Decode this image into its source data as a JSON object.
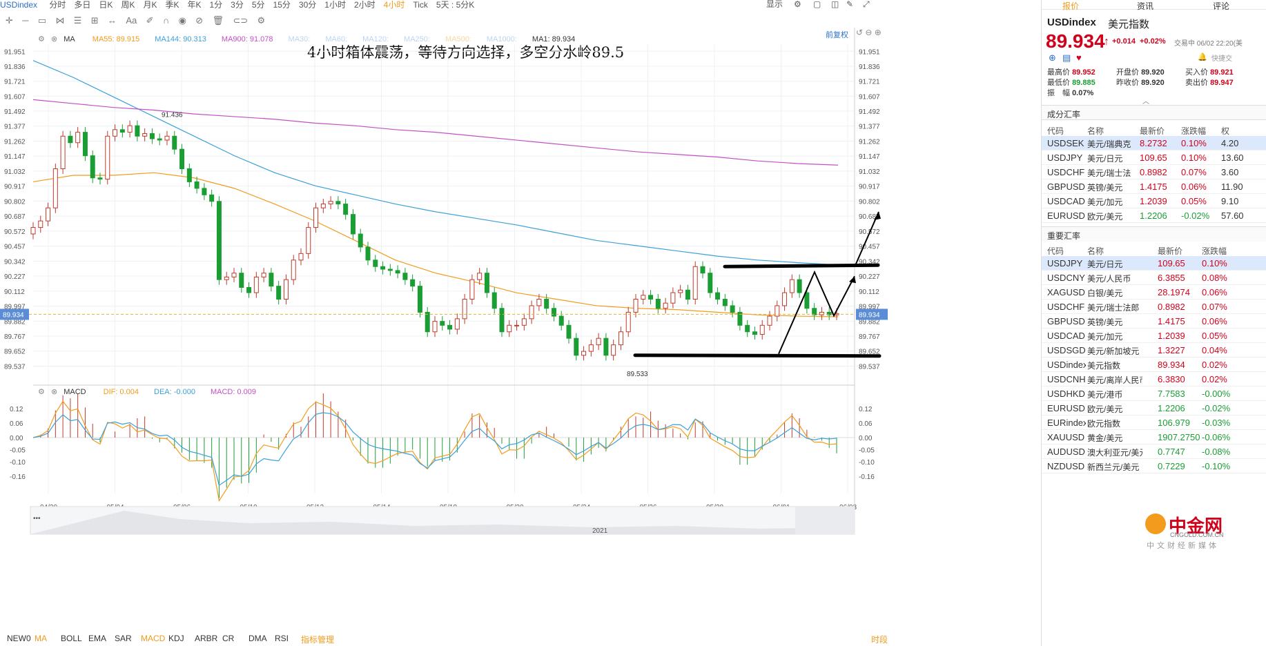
{
  "topbar": {
    "symbol": "USDindex",
    "periods": [
      "分时",
      "多日",
      "日K",
      "周K",
      "月K",
      "季K",
      "年K",
      "1分",
      "3分",
      "5分",
      "15分",
      "30分",
      "1小时",
      "2小时",
      "4小时",
      "Tick",
      "5天 : 5分K"
    ],
    "active_period": "4小时",
    "display_label": "显示"
  },
  "toolbar2": {
    "font_label": "Aa"
  },
  "ma_bar": {
    "ma_label": "MA",
    "items": [
      {
        "text": "MA55: 89.915",
        "color": "#f29b1c"
      },
      {
        "text": "MA144: 90.313",
        "color": "#3aa0d8"
      },
      {
        "text": "MA900: 91.078",
        "color": "#c34fc6"
      },
      {
        "text": "MA30:",
        "color": "#bcd6ee"
      },
      {
        "text": "MA60:",
        "color": "#bcd6ee"
      },
      {
        "text": "MA120:",
        "color": "#bcd6ee"
      },
      {
        "text": "MA250:",
        "color": "#bcd6ee"
      },
      {
        "text": "MA500:",
        "color": "#f3d9a6"
      },
      {
        "text": "MA1000:",
        "color": "#bcd6ee"
      },
      {
        "text": "MA1: 89.934",
        "color": "#333333"
      }
    ],
    "adjust_label": "前复权"
  },
  "annotation_text": "4小时箱体震荡，等待方向选择，多空分水岭89.5",
  "price_axis": {
    "ticks": [
      "91.951",
      "91.836",
      "91.721",
      "91.607",
      "91.492",
      "91.377",
      "91.262",
      "91.147",
      "91.032",
      "90.917",
      "90.802",
      "90.687",
      "90.572",
      "90.457",
      "90.342",
      "90.227",
      "90.112",
      "89.997",
      "89.882",
      "89.767",
      "89.652",
      "89.537"
    ],
    "current": "89.934",
    "high_label": "91.436",
    "low_label": "89.533"
  },
  "macd_bar": {
    "label": "MACD",
    "items": [
      {
        "text": "DIF: 0.004",
        "color": "#f29b1c"
      },
      {
        "text": "DEA: -0.000",
        "color": "#3aa0d8"
      },
      {
        "text": "MACD: 0.009",
        "color": "#c34fc6"
      }
    ],
    "ticks": [
      "0.12",
      "0.06",
      "0.00",
      "-0.05",
      "-0.10",
      "-0.16"
    ]
  },
  "dates": [
    "04/30",
    "05/04",
    "05/06",
    "05/10",
    "05/12",
    "05/14",
    "05/18",
    "05/20",
    "05/24",
    "05/26",
    "05/28",
    "06/01",
    "06/03"
  ],
  "navigator_year": "2021",
  "bottombar": {
    "items": [
      "NEW0",
      "MA",
      "BOLL",
      "EMA",
      "SAR",
      "MACD",
      "KDJ",
      "ARBR",
      "CR",
      "DMA",
      "RSI",
      "指标管理"
    ],
    "right_label": "时段"
  },
  "right_panel": {
    "tabs": [
      "报价",
      "资讯",
      "评论"
    ],
    "symbol": "USDindex",
    "name": "美元指数",
    "price": "89.934",
    "change": "+0.014",
    "change_pct": "+0.02%",
    "trade_time": "交易中 06/02 22:20(美",
    "quick_trade": "快捷交",
    "stats": [
      {
        "label": "最高价",
        "value": "89.952",
        "color": "#d0021b"
      },
      {
        "label": "开盘价",
        "value": "89.920",
        "color": "#333333"
      },
      {
        "label": "买入价",
        "value": "89.921",
        "color": "#d0021b"
      },
      {
        "label": "最低价",
        "value": "89.885",
        "color": "#1a9e34"
      },
      {
        "label": "昨收价",
        "value": "89.920",
        "color": "#333333"
      },
      {
        "label": "卖出价",
        "value": "89.947",
        "color": "#d0021b"
      },
      {
        "label": "振　幅",
        "value": "0.07%",
        "color": "#333333"
      }
    ],
    "section1_title": "成分汇率",
    "section1_headers": [
      "代码",
      "名称",
      "最新价",
      "涨跌幅",
      "权"
    ],
    "section1_rows": [
      {
        "code": "USDSEK",
        "name": "美元/瑞典克",
        "price": "8.2732",
        "chg": "0.10%",
        "w": "4.20"
      },
      {
        "code": "USDJPY",
        "name": "美元/日元",
        "price": "109.65",
        "chg": "0.10%",
        "w": "13.60"
      },
      {
        "code": "USDCHF",
        "name": "美元/瑞士法",
        "price": "0.8982",
        "chg": "0.07%",
        "w": "3.60"
      },
      {
        "code": "GBPUSD",
        "name": "英镑/美元",
        "price": "1.4175",
        "chg": "0.06%",
        "w": "11.90"
      },
      {
        "code": "USDCAD",
        "name": "美元/加元",
        "price": "1.2039",
        "chg": "0.05%",
        "w": "9.10"
      },
      {
        "code": "EURUSD",
        "name": "欧元/美元",
        "price": "1.2206",
        "chg": "-0.02%",
        "w": "57.60"
      }
    ],
    "section2_title": "重要汇率",
    "section2_headers": [
      "代码",
      "名称",
      "最新价",
      "涨跌幅"
    ],
    "section2_rows": [
      {
        "code": "USDJPY",
        "name": "美元/日元",
        "price": "109.65",
        "chg": "0.10%"
      },
      {
        "code": "USDCNY",
        "name": "美元/人民币",
        "price": "6.3855",
        "chg": "0.08%"
      },
      {
        "code": "XAGUSD",
        "name": "白银/美元",
        "price": "28.1974",
        "chg": "0.06%"
      },
      {
        "code": "USDCHF",
        "name": "美元/瑞士法郎",
        "price": "0.8982",
        "chg": "0.07%"
      },
      {
        "code": "GBPUSD",
        "name": "英镑/美元",
        "price": "1.4175",
        "chg": "0.06%"
      },
      {
        "code": "USDCAD",
        "name": "美元/加元",
        "price": "1.2039",
        "chg": "0.05%"
      },
      {
        "code": "USDSGD",
        "name": "美元/新加坡元",
        "price": "1.3227",
        "chg": "0.04%"
      },
      {
        "code": "USDindex",
        "name": "美元指数",
        "price": "89.934",
        "chg": "0.02%"
      },
      {
        "code": "USDCNH",
        "name": "美元/离岸人民币",
        "price": "6.3830",
        "chg": "0.02%"
      },
      {
        "code": "USDHKD",
        "name": "美元/港币",
        "price": "7.7583",
        "chg": "-0.00%"
      },
      {
        "code": "EURUSD",
        "name": "欧元/美元",
        "price": "1.2206",
        "chg": "-0.02%"
      },
      {
        "code": "EURindex",
        "name": "欧元指数",
        "price": "106.979",
        "chg": "-0.03%"
      },
      {
        "code": "XAUUSD",
        "name": "黄金/美元",
        "price": "1907.2750",
        "chg": "-0.06%"
      },
      {
        "code": "AUDUSD",
        "name": "澳大利亚元/美元",
        "price": "0.7747",
        "chg": "-0.08%"
      },
      {
        "code": "NZDUSD",
        "name": "新西兰元/美元",
        "price": "0.7229",
        "chg": "-0.10%"
      }
    ],
    "watermark_name": "中金网",
    "watermark_url": "CNGOLD.COM.CN",
    "watermark_tag": "中文财经新媒体"
  },
  "chart_data": {
    "type": "candlestick",
    "title": "4小时箱体震荡，等待方向选择，多空分水岭89.5",
    "ylim": [
      89.46,
      92.0
    ],
    "x_labels": [
      "04/30",
      "05/04",
      "05/06",
      "05/10",
      "05/12",
      "05/14",
      "05/18",
      "05/20",
      "05/24",
      "05/26",
      "05/28",
      "06/01",
      "06/03"
    ],
    "closes": [
      90.6,
      90.65,
      90.75,
      91.05,
      91.3,
      91.25,
      91.33,
      91.15,
      90.98,
      90.97,
      91.3,
      91.35,
      91.33,
      91.38,
      91.3,
      91.32,
      91.28,
      91.27,
      91.3,
      91.2,
      91.05,
      90.95,
      90.9,
      90.85,
      90.8,
      90.2,
      90.22,
      90.25,
      90.14,
      90.1,
      90.22,
      90.25,
      90.15,
      90.05,
      90.2,
      90.35,
      90.4,
      90.6,
      90.75,
      90.78,
      90.8,
      90.78,
      90.7,
      90.55,
      90.45,
      90.35,
      90.3,
      90.28,
      90.27,
      90.25,
      90.2,
      90.15,
      89.95,
      89.8,
      89.88,
      89.85,
      89.82,
      89.9,
      90.05,
      90.2,
      90.25,
      90.1,
      89.98,
      89.8,
      89.85,
      89.85,
      89.9,
      90.0,
      90.05,
      89.98,
      89.92,
      89.85,
      89.75,
      89.62,
      89.65,
      89.7,
      89.75,
      89.62,
      89.7,
      89.8,
      89.95,
      90.05,
      90.08,
      90.05,
      89.98,
      90.02,
      90.1,
      90.12,
      90.05,
      90.3,
      90.25,
      90.1,
      90.05,
      90.0,
      89.95,
      89.85,
      89.8,
      89.78,
      89.85,
      89.92,
      90.0,
      90.1,
      90.2,
      90.1,
      89.98,
      89.93,
      89.95,
      89.93,
      89.94
    ],
    "high_marker": 91.436,
    "low_marker": 89.533,
    "last_price": 89.934,
    "ma_series": [
      {
        "name": "MA55",
        "color": "#f29b1c",
        "values": [
          90.95,
          91.0,
          91.0,
          91.02,
          90.98,
          90.9,
          90.78,
          90.65,
          90.5,
          90.35,
          90.25,
          90.18,
          90.1,
          90.05,
          90.0,
          89.98,
          89.97,
          89.95,
          89.93,
          89.92,
          89.915
        ]
      },
      {
        "name": "MA144",
        "color": "#3aa0d8",
        "values": [
          91.88,
          91.75,
          91.6,
          91.45,
          91.3,
          91.15,
          91.02,
          90.92,
          90.85,
          90.78,
          90.72,
          90.67,
          90.62,
          90.56,
          90.5,
          90.46,
          90.42,
          90.38,
          90.35,
          90.33,
          90.313
        ]
      },
      {
        "name": "MA900",
        "color": "#c34fc6",
        "values": [
          91.58,
          91.55,
          91.52,
          91.5,
          91.47,
          91.45,
          91.43,
          91.4,
          91.38,
          91.35,
          91.33,
          91.3,
          91.27,
          91.24,
          91.21,
          91.18,
          91.16,
          91.14,
          91.11,
          91.09,
          91.078
        ]
      }
    ],
    "support_line": 89.62,
    "resistance_line": 90.3
  }
}
